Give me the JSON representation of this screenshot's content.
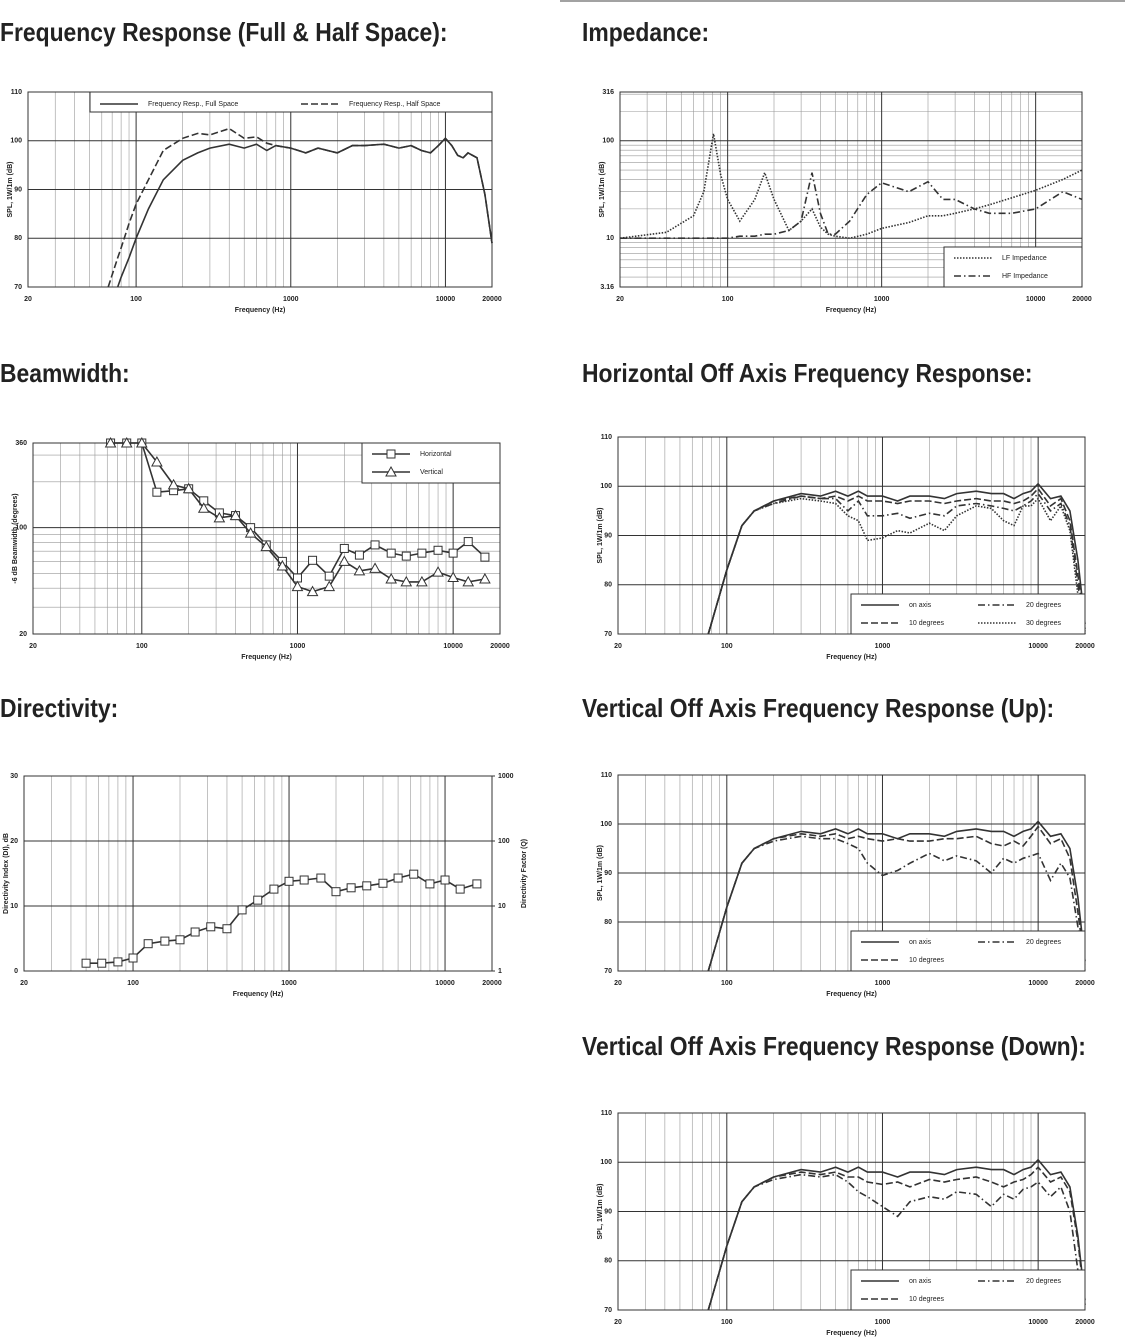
{
  "chart_data": [
    {
      "type": "line",
      "title": "Frequency Response (Full & Half Space):",
      "xscale": "log",
      "xlim": [
        20,
        20000
      ],
      "xticks": [
        20,
        100,
        1000,
        10000,
        20000
      ],
      "ylim": [
        70,
        110
      ],
      "yticks": [
        70,
        80,
        90,
        100,
        110
      ],
      "xlabel": "Frequency (Hz)",
      "ylabel": "SPL, 1W/1m (dB)",
      "grid": true,
      "minor_grid": true,
      "legend": "top",
      "legend_columns": 2,
      "x": [
        66,
        76,
        80,
        90,
        100,
        120,
        150,
        200,
        250,
        300,
        400,
        500,
        600,
        700,
        800,
        1000,
        1250,
        1500,
        2000,
        2500,
        3000,
        4000,
        5000,
        6000,
        7000,
        8000,
        9000,
        10000,
        11000,
        12000,
        13000,
        14000,
        16000,
        18000,
        20000
      ],
      "series": [
        {
          "name": "Frequency Resp., Full Space",
          "color": "#333333",
          "style": "solid",
          "values": [
            null,
            70,
            72,
            76,
            80,
            86,
            92,
            96,
            97.5,
            98.5,
            99.3,
            98.5,
            99.3,
            98,
            99,
            98.5,
            97.5,
            98.5,
            97.5,
            99,
            99,
            99.3,
            98.5,
            99,
            98,
            97.5,
            99,
            100.5,
            99,
            97,
            96.5,
            97.5,
            96.5,
            89,
            79
          ]
        },
        {
          "name": "Frequency Resp., Half Space",
          "color": "#333333",
          "style": "dashed",
          "values": [
            70,
            76,
            78,
            83,
            87,
            92,
            98,
            100.5,
            101.5,
            101.2,
            102.5,
            100.5,
            100.8,
            99.5,
            99,
            98.5,
            97.5,
            98.5,
            97.5,
            99,
            99,
            99.3,
            98.5,
            99,
            98,
            97.5,
            99,
            100.5,
            99,
            97,
            96.5,
            97.5,
            96.5,
            89,
            79
          ]
        }
      ]
    },
    {
      "type": "line",
      "title": "Impedance:",
      "xscale": "log",
      "yscale": "log",
      "xlim": [
        20,
        20000
      ],
      "xticks": [
        20,
        100,
        1000,
        10000,
        20000
      ],
      "ylim": [
        3.16,
        316
      ],
      "yticks": [
        3.16,
        10,
        100,
        316
      ],
      "xlabel": "Frequency (Hz)",
      "ylabel": "SPL, 1W/1m (dB)",
      "grid": true,
      "minor_grid": true,
      "legend": "bottom-right",
      "legend_columns": 1,
      "x": [
        20,
        40,
        60,
        70,
        81,
        90,
        100,
        120,
        150,
        174,
        200,
        250,
        300,
        353,
        400,
        450,
        500,
        620,
        800,
        1000,
        1500,
        2000,
        2500,
        3000,
        4000,
        5000,
        7000,
        10000,
        15000,
        20000
      ],
      "series": [
        {
          "name": "LF Impedance",
          "color": "#333333",
          "style": "dotted",
          "values": [
            10,
            11.5,
            17,
            30,
            118,
            45,
            25,
            15,
            25,
            47,
            25,
            12,
            15,
            20,
            13,
            11,
            10.5,
            10,
            11,
            12.6,
            14.5,
            17,
            17,
            18,
            20,
            22,
            26,
            31,
            40,
            50
          ]
        },
        {
          "name": "HF Impedance",
          "color": "#333333",
          "style": "dash-dot",
          "values": [
            10,
            10,
            10,
            10,
            10,
            10,
            10,
            10.5,
            10.5,
            11,
            11,
            12,
            15,
            47,
            18,
            11,
            11,
            15,
            28,
            37,
            30,
            38,
            25,
            25,
            20,
            18,
            18,
            20,
            30,
            25
          ]
        }
      ]
    },
    {
      "type": "line",
      "title": "Beamwidth:",
      "xscale": "log",
      "yscale": "log",
      "xlim": [
        20,
        20000
      ],
      "xticks": [
        20,
        100,
        1000,
        10000,
        20000
      ],
      "ylim": [
        20,
        360
      ],
      "yticks": [
        20,
        100,
        360
      ],
      "xlabel": "Frequency (Hz)",
      "ylabel": "-6 dB Beamwidth (degrees)",
      "grid": true,
      "minor_grid": true,
      "legend": "top-right",
      "legend_columns": 1,
      "x": [
        63,
        80,
        100,
        125,
        160,
        200,
        250,
        315,
        400,
        500,
        630,
        800,
        1000,
        1250,
        1600,
        2000,
        2500,
        3150,
        4000,
        5000,
        6300,
        8000,
        10000,
        12500,
        16000
      ],
      "series": [
        {
          "name": "Horizontal",
          "color": "#333333",
          "style": "solid",
          "marker": "square",
          "values": [
            360,
            360,
            360,
            171,
            175,
            180,
            150,
            125,
            120,
            100,
            77,
            60,
            46.7,
            61,
            48,
            73,
            66,
            77,
            68,
            65,
            68,
            71,
            68,
            81,
            64
          ]
        },
        {
          "name": "Vertical",
          "color": "#333333",
          "style": "solid",
          "marker": "triangle",
          "values": [
            360,
            360,
            360,
            270,
            191,
            180,
            134,
            116,
            120,
            92,
            75,
            56,
            41,
            38,
            41,
            60,
            52,
            54,
            46,
            44,
            44,
            51,
            47,
            44,
            46
          ]
        }
      ]
    },
    {
      "type": "line",
      "title": "Horizontal Off Axis Frequency Response:",
      "xscale": "log",
      "xlim": [
        20,
        20000
      ],
      "xticks": [
        20,
        100,
        1000,
        10000,
        20000
      ],
      "ylim": [
        70,
        110
      ],
      "yticks": [
        70,
        80,
        90,
        100,
        110
      ],
      "xlabel": "Frequency (Hz)",
      "ylabel": "SPL, 1W/1m (dB)",
      "grid": true,
      "minor_grid": true,
      "legend": "bottom-right",
      "legend_columns": 2,
      "x": [
        76,
        100,
        125,
        150,
        200,
        300,
        400,
        500,
        600,
        700,
        800,
        1000,
        1250,
        1500,
        2000,
        2500,
        3000,
        4000,
        5000,
        6000,
        7000,
        8000,
        9000,
        10000,
        12000,
        14000,
        16000,
        18000,
        20000
      ],
      "series": [
        {
          "name": "on axis",
          "color": "#333333",
          "style": "solid",
          "values": [
            70,
            83,
            92,
            95,
            97,
            98.5,
            98,
            99,
            98,
            99,
            98,
            98,
            97,
            98,
            98,
            97.5,
            98.5,
            99,
            98.5,
            98.5,
            97.5,
            98.5,
            99,
            100.5,
            97.5,
            98,
            95,
            85,
            72
          ]
        },
        {
          "name": "10 degrees",
          "color": "#333333",
          "style": "dashed",
          "values": [
            70,
            83,
            92,
            95,
            97,
            98,
            97.5,
            98,
            97,
            98,
            97,
            97,
            96.5,
            97,
            97,
            96.5,
            97,
            97.5,
            97,
            97,
            96.5,
            97,
            98,
            99.5,
            96,
            97.5,
            93,
            82,
            71
          ]
        },
        {
          "name": "20 degrees",
          "color": "#333333",
          "style": "dash-dot",
          "values": [
            70,
            83,
            92,
            95,
            96.5,
            98,
            97.5,
            97.5,
            95,
            97,
            94,
            94,
            94.5,
            93.5,
            94.5,
            94,
            96,
            96.5,
            96,
            95.5,
            95,
            96,
            97,
            98.5,
            95,
            96.5,
            92,
            80,
            70.5
          ]
        },
        {
          "name": "30 degrees",
          "color": "#333333",
          "style": "dotted",
          "values": [
            70,
            83,
            92,
            95,
            96.5,
            97.5,
            97,
            96.5,
            94,
            93,
            89,
            89.5,
            91,
            90.5,
            92.5,
            91,
            94,
            96,
            95.5,
            93,
            92,
            96,
            96,
            97.5,
            93,
            96,
            91,
            78,
            70
          ]
        }
      ]
    },
    {
      "type": "line",
      "title": "Directivity:",
      "xscale": "log",
      "xlim": [
        20,
        20000
      ],
      "xticks": [
        20,
        100,
        1000,
        10000,
        20000
      ],
      "ylim": [
        0,
        30
      ],
      "yticks": [
        0,
        10,
        20,
        30
      ],
      "y2scale": "log",
      "y2lim": [
        1,
        1000
      ],
      "y2ticks": [
        1,
        10,
        100,
        1000
      ],
      "xlabel": "Frequency (Hz)",
      "ylabel": "Directivity Index (DI), dB",
      "y2label": "Directivity Factor (Q)",
      "grid": true,
      "minor_grid": true,
      "x": [
        50,
        63,
        80,
        100,
        125,
        160,
        200,
        250,
        315,
        400,
        500,
        630,
        800,
        1000,
        1250,
        1600,
        2000,
        2500,
        3150,
        4000,
        5000,
        6300,
        8000,
        10000,
        12500,
        16000
      ],
      "values": [
        1.2,
        1.2,
        1.4,
        2.0,
        4.2,
        4.6,
        4.8,
        6.0,
        6.8,
        6.5,
        9.4,
        10.9,
        12.6,
        13.8,
        14.0,
        14.3,
        12.2,
        12.8,
        13.1,
        13.5,
        14.3,
        14.9,
        13.4,
        14.0,
        12.6,
        13.4
      ],
      "color": "#333333",
      "style": "solid",
      "marker": "square"
    },
    {
      "type": "line",
      "title": "Vertical Off Axis Frequency Response (Up):",
      "xscale": "log",
      "xlim": [
        20,
        20000
      ],
      "xticks": [
        20,
        100,
        1000,
        10000,
        20000
      ],
      "ylim": [
        70,
        110
      ],
      "yticks": [
        70,
        80,
        90,
        100,
        110
      ],
      "xlabel": "Frequency (Hz)",
      "ylabel": "SPL, 1W/1m (dB)",
      "grid": true,
      "minor_grid": true,
      "legend": "bottom-right",
      "legend_columns": 2,
      "x": [
        76,
        100,
        125,
        150,
        200,
        300,
        400,
        500,
        600,
        700,
        800,
        1000,
        1250,
        1500,
        2000,
        2500,
        3000,
        4000,
        5000,
        6000,
        7000,
        8000,
        9000,
        10000,
        12000,
        14000,
        16000,
        18000,
        20000
      ],
      "series": [
        {
          "name": "on axis",
          "color": "#333333",
          "style": "solid",
          "values": [
            70,
            83,
            92,
            95,
            97,
            98.5,
            98,
            99,
            98,
            99,
            98,
            98,
            97,
            98,
            98,
            97.5,
            98.5,
            99,
            98.5,
            98.5,
            97.5,
            98.5,
            99,
            100.5,
            97.5,
            98,
            95,
            85,
            72
          ]
        },
        {
          "name": "10 degrees",
          "color": "#333333",
          "style": "dashed",
          "values": [
            70,
            83,
            92,
            95,
            97,
            98,
            97.5,
            98,
            97,
            97.5,
            97,
            96.5,
            97,
            96.5,
            96.5,
            97,
            97,
            97.5,
            96,
            95.5,
            96.5,
            95.5,
            97.5,
            99.5,
            96,
            97,
            93,
            82,
            71
          ]
        },
        {
          "name": "20 degrees",
          "color": "#333333",
          "style": "dash-dot",
          "values": [
            70,
            83,
            92,
            95,
            96.5,
            97.5,
            97,
            97,
            96,
            95,
            92,
            89.5,
            90.5,
            92,
            94,
            92.5,
            93.5,
            92.5,
            90,
            93,
            92,
            93,
            93.5,
            94,
            88.5,
            92,
            89,
            79,
            70
          ]
        }
      ]
    },
    {
      "type": "line",
      "title": "Vertical Off Axis Frequency Response (Down):",
      "xscale": "log",
      "xlim": [
        20,
        20000
      ],
      "xticks": [
        20,
        100,
        1000,
        10000,
        20000
      ],
      "ylim": [
        70,
        110
      ],
      "yticks": [
        70,
        80,
        90,
        100,
        110
      ],
      "xlabel": "Frequency (Hz)",
      "ylabel": "SPL, 1W/1m (dB)",
      "grid": true,
      "minor_grid": true,
      "legend": "bottom-right",
      "legend_columns": 2,
      "x": [
        76,
        100,
        125,
        150,
        200,
        300,
        400,
        500,
        600,
        700,
        800,
        1000,
        1250,
        1500,
        2000,
        2500,
        3000,
        4000,
        5000,
        6000,
        7000,
        8000,
        9000,
        10000,
        12000,
        14000,
        16000,
        18000,
        20000
      ],
      "series": [
        {
          "name": "on axis",
          "color": "#333333",
          "style": "solid",
          "values": [
            70,
            83,
            92,
            95,
            97,
            98.5,
            98,
            99,
            98,
            99,
            98,
            98,
            97,
            98,
            98,
            97.5,
            98.5,
            99,
            98.5,
            98.5,
            97.5,
            98.5,
            99,
            100.5,
            97.5,
            98,
            95,
            85,
            72
          ]
        },
        {
          "name": "10 degrees",
          "color": "#333333",
          "style": "dashed",
          "values": [
            70,
            83,
            92,
            95,
            97,
            98,
            97.5,
            98,
            97,
            97,
            96,
            95.5,
            96,
            95,
            96.5,
            96,
            96.5,
            97,
            96,
            95,
            96,
            96.5,
            97.5,
            99,
            96,
            97,
            94,
            84,
            71
          ]
        },
        {
          "name": "20 degrees",
          "color": "#333333",
          "style": "dash-dot",
          "values": [
            70,
            83,
            92,
            95,
            96.5,
            97.5,
            97,
            97.5,
            96,
            94,
            93,
            91,
            89,
            92,
            93,
            92.5,
            94,
            93.5,
            91,
            93.5,
            92.5,
            94.5,
            95,
            96,
            93,
            95,
            90,
            78,
            70
          ]
        }
      ]
    }
  ]
}
